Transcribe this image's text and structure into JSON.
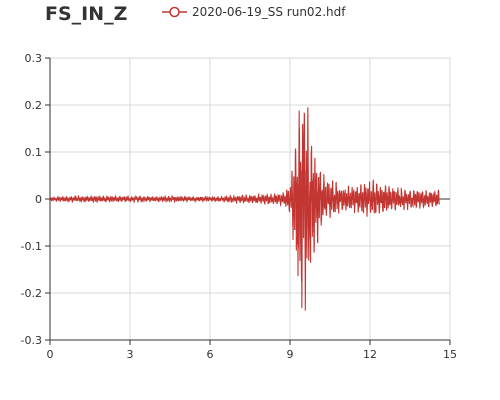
{
  "title": "FS_IN_Z",
  "legend": {
    "label": "2020-06-19_SS run02.hdf"
  },
  "colors": {
    "series": "#c23531",
    "grid": "#d9d9d9",
    "axis": "#333333"
  },
  "chart_data": {
    "type": "line",
    "title": "FS_IN_Z",
    "xlabel": "",
    "ylabel": "",
    "xlim": [
      0,
      15
    ],
    "ylim": [
      -0.3,
      0.3
    ],
    "x_ticks": [
      0,
      3,
      6,
      9,
      12,
      15
    ],
    "x_tick_labels": [
      "0",
      "3",
      "6",
      "9",
      "12",
      "15"
    ],
    "y_ticks": [
      0.3,
      0.2,
      0.1,
      0,
      -0.1,
      -0.2,
      -0.3
    ],
    "y_tick_labels": [
      "0.3",
      "0.2",
      "0.1",
      "0",
      "-0.1",
      "-0.2",
      "-0.3"
    ],
    "grid": true,
    "legend_position": "top",
    "series": [
      {
        "name": "2020-06-19_SS run02.hdf",
        "x_end": 14.6,
        "envelope": [
          {
            "x": 0,
            "amp": 0.004
          },
          {
            "x": 0.5,
            "amp": 0.005
          },
          {
            "x": 1.0,
            "amp": 0.006
          },
          {
            "x": 1.5,
            "amp": 0.006
          },
          {
            "x": 2.0,
            "amp": 0.007
          },
          {
            "x": 2.5,
            "amp": 0.006
          },
          {
            "x": 3.0,
            "amp": 0.006
          },
          {
            "x": 3.5,
            "amp": 0.006
          },
          {
            "x": 4.0,
            "amp": 0.005
          },
          {
            "x": 4.5,
            "amp": 0.006
          },
          {
            "x": 5.0,
            "amp": 0.005
          },
          {
            "x": 5.5,
            "amp": 0.005
          },
          {
            "x": 6.0,
            "amp": 0.005
          },
          {
            "x": 6.5,
            "amp": 0.006
          },
          {
            "x": 7.0,
            "amp": 0.008
          },
          {
            "x": 7.5,
            "amp": 0.009
          },
          {
            "x": 8.0,
            "amp": 0.01
          },
          {
            "x": 8.5,
            "amp": 0.012
          },
          {
            "x": 8.8,
            "amp": 0.015
          },
          {
            "x": 9.0,
            "amp": 0.03
          },
          {
            "x": 9.2,
            "amp": 0.12
          },
          {
            "x": 9.3,
            "amp": 0.22
          },
          {
            "x": 9.5,
            "amp": 0.24
          },
          {
            "x": 9.7,
            "amp": 0.17
          },
          {
            "x": 9.9,
            "amp": 0.12
          },
          {
            "x": 10.1,
            "amp": 0.07
          },
          {
            "x": 10.4,
            "amp": 0.045
          },
          {
            "x": 10.8,
            "amp": 0.03
          },
          {
            "x": 11.2,
            "amp": 0.025
          },
          {
            "x": 11.6,
            "amp": 0.03
          },
          {
            "x": 12.0,
            "amp": 0.04
          },
          {
            "x": 12.4,
            "amp": 0.035
          },
          {
            "x": 12.8,
            "amp": 0.028
          },
          {
            "x": 13.2,
            "amp": 0.022
          },
          {
            "x": 13.6,
            "amp": 0.02
          },
          {
            "x": 14.0,
            "amp": 0.018
          },
          {
            "x": 14.6,
            "amp": 0.018
          }
        ]
      }
    ]
  }
}
